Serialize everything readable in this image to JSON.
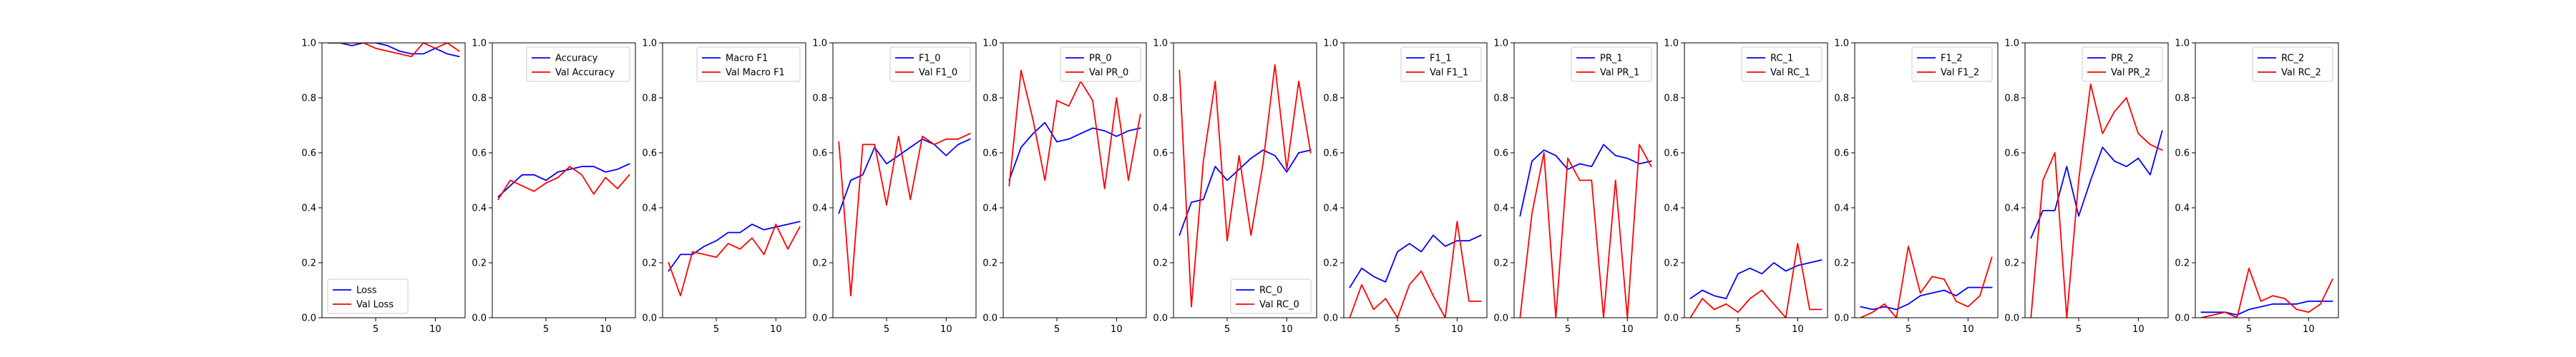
{
  "colors": {
    "train": "#0000ff",
    "val": "#ff0000"
  },
  "chart_data": [
    {
      "type": "line",
      "x": [
        1,
        2,
        3,
        4,
        5,
        6,
        7,
        8,
        9,
        10,
        11,
        12
      ],
      "ylim": [
        0,
        1
      ],
      "xticks": [
        5,
        10
      ],
      "yticks": [
        0.0,
        0.2,
        0.4,
        0.6,
        0.8,
        1.0
      ],
      "ytick_labels": [
        "0.0",
        "0.2",
        "0.4",
        "0.6",
        "0.8",
        "1.0"
      ],
      "xtick_labels": [
        "5",
        "10"
      ],
      "legend_position": "lower-left",
      "series": [
        {
          "name": "Loss",
          "values": [
            1.02,
            1.01,
            0.99,
            1.0,
            1.0,
            0.99,
            0.97,
            0.96,
            0.96,
            0.98,
            0.96,
            0.95
          ]
        },
        {
          "name": "Val Loss",
          "values": [
            1.03,
            1.02,
            1.0,
            1.01,
            0.98,
            0.97,
            0.96,
            0.95,
            1.0,
            0.98,
            1.0,
            0.97
          ]
        }
      ]
    },
    {
      "type": "line",
      "x": [
        1,
        2,
        3,
        4,
        5,
        6,
        7,
        8,
        9,
        10,
        11,
        12
      ],
      "ylim": [
        0,
        1
      ],
      "xticks": [
        5,
        10
      ],
      "yticks": [
        0.0,
        0.2,
        0.4,
        0.6,
        0.8,
        1.0
      ],
      "ytick_labels": [
        "0.0",
        "0.2",
        "0.4",
        "0.6",
        "0.8",
        "1.0"
      ],
      "xtick_labels": [
        "5",
        "10"
      ],
      "legend_position": "upper-right",
      "series": [
        {
          "name": "Accuracy",
          "values": [
            0.44,
            0.48,
            0.52,
            0.52,
            0.5,
            0.53,
            0.54,
            0.55,
            0.55,
            0.53,
            0.54,
            0.56
          ]
        },
        {
          "name": "Val Accuracy",
          "values": [
            0.43,
            0.5,
            0.48,
            0.46,
            0.49,
            0.51,
            0.55,
            0.52,
            0.45,
            0.51,
            0.47,
            0.52
          ]
        }
      ]
    },
    {
      "type": "line",
      "x": [
        1,
        2,
        3,
        4,
        5,
        6,
        7,
        8,
        9,
        10,
        11,
        12
      ],
      "ylim": [
        0,
        1
      ],
      "xticks": [
        5,
        10
      ],
      "yticks": [
        0.0,
        0.2,
        0.4,
        0.6,
        0.8,
        1.0
      ],
      "ytick_labels": [
        "0.0",
        "0.2",
        "0.4",
        "0.6",
        "0.8",
        "1.0"
      ],
      "xtick_labels": [
        "5",
        "10"
      ],
      "legend_position": "upper-right",
      "series": [
        {
          "name": "Macro F1",
          "values": [
            0.17,
            0.23,
            0.23,
            0.26,
            0.28,
            0.31,
            0.31,
            0.34,
            0.32,
            0.33,
            0.34,
            0.35
          ]
        },
        {
          "name": "Val Macro F1",
          "values": [
            0.2,
            0.08,
            0.24,
            0.23,
            0.22,
            0.27,
            0.25,
            0.29,
            0.23,
            0.34,
            0.25,
            0.33
          ]
        }
      ]
    },
    {
      "type": "line",
      "x": [
        1,
        2,
        3,
        4,
        5,
        6,
        7,
        8,
        9,
        10,
        11,
        12
      ],
      "ylim": [
        0,
        1
      ],
      "xticks": [
        5,
        10
      ],
      "yticks": [
        0.0,
        0.2,
        0.4,
        0.6,
        0.8,
        1.0
      ],
      "ytick_labels": [
        "0.0",
        "0.2",
        "0.4",
        "0.6",
        "0.8",
        "1.0"
      ],
      "xtick_labels": [
        "5",
        "10"
      ],
      "legend_position": "upper-right",
      "series": [
        {
          "name": "F1_0",
          "values": [
            0.38,
            0.5,
            0.52,
            0.62,
            0.56,
            0.59,
            0.62,
            0.65,
            0.63,
            0.59,
            0.63,
            0.65
          ]
        },
        {
          "name": "Val F1_0",
          "values": [
            0.64,
            0.08,
            0.63,
            0.63,
            0.41,
            0.66,
            0.43,
            0.66,
            0.63,
            0.65,
            0.65,
            0.67
          ]
        }
      ]
    },
    {
      "type": "line",
      "x": [
        1,
        2,
        3,
        4,
        5,
        6,
        7,
        8,
        9,
        10,
        11,
        12
      ],
      "ylim": [
        0,
        1
      ],
      "xticks": [
        5,
        10
      ],
      "yticks": [
        0.0,
        0.2,
        0.4,
        0.6,
        0.8,
        1.0
      ],
      "ytick_labels": [
        "0.0",
        "0.2",
        "0.4",
        "0.6",
        "0.8",
        "1.0"
      ],
      "xtick_labels": [
        "5",
        "10"
      ],
      "legend_position": "upper-right",
      "series": [
        {
          "name": "PR_0",
          "values": [
            0.5,
            0.62,
            0.67,
            0.71,
            0.64,
            0.65,
            0.67,
            0.69,
            0.68,
            0.66,
            0.68,
            0.69
          ]
        },
        {
          "name": "Val PR_0",
          "values": [
            0.48,
            0.9,
            0.72,
            0.5,
            0.79,
            0.77,
            0.86,
            0.79,
            0.47,
            0.8,
            0.5,
            0.74
          ]
        }
      ]
    },
    {
      "type": "line",
      "x": [
        1,
        2,
        3,
        4,
        5,
        6,
        7,
        8,
        9,
        10,
        11,
        12
      ],
      "ylim": [
        0,
        1
      ],
      "xticks": [
        5,
        10
      ],
      "yticks": [
        0.0,
        0.2,
        0.4,
        0.6,
        0.8,
        1.0
      ],
      "ytick_labels": [
        "0.0",
        "0.2",
        "0.4",
        "0.6",
        "0.8",
        "1.0"
      ],
      "xtick_labels": [
        "5",
        "10"
      ],
      "legend_position": "lower-right",
      "series": [
        {
          "name": "RC_0",
          "values": [
            0.3,
            0.42,
            0.43,
            0.55,
            0.5,
            0.54,
            0.58,
            0.61,
            0.59,
            0.53,
            0.6,
            0.61
          ]
        },
        {
          "name": "Val RC_0",
          "values": [
            0.9,
            0.04,
            0.57,
            0.86,
            0.28,
            0.59,
            0.3,
            0.56,
            0.92,
            0.54,
            0.86,
            0.6
          ]
        }
      ]
    },
    {
      "type": "line",
      "x": [
        1,
        2,
        3,
        4,
        5,
        6,
        7,
        8,
        9,
        10,
        11,
        12
      ],
      "ylim": [
        0,
        1
      ],
      "xticks": [
        5,
        10
      ],
      "yticks": [
        0.0,
        0.2,
        0.4,
        0.6,
        0.8,
        1.0
      ],
      "ytick_labels": [
        "0.0",
        "0.2",
        "0.4",
        "0.6",
        "0.8",
        "1.0"
      ],
      "xtick_labels": [
        "5",
        "10"
      ],
      "legend_position": "upper-right",
      "series": [
        {
          "name": "F1_1",
          "values": [
            0.11,
            0.18,
            0.15,
            0.13,
            0.24,
            0.27,
            0.24,
            0.3,
            0.26,
            0.28,
            0.28,
            0.3
          ]
        },
        {
          "name": "Val F1_1",
          "values": [
            0.0,
            0.12,
            0.03,
            0.07,
            0.0,
            0.12,
            0.17,
            0.08,
            0.0,
            0.35,
            0.06,
            0.06
          ]
        }
      ]
    },
    {
      "type": "line",
      "x": [
        1,
        2,
        3,
        4,
        5,
        6,
        7,
        8,
        9,
        10,
        11,
        12
      ],
      "ylim": [
        0,
        1
      ],
      "xticks": [
        5,
        10
      ],
      "yticks": [
        0.0,
        0.2,
        0.4,
        0.6,
        0.8,
        1.0
      ],
      "ytick_labels": [
        "0.0",
        "0.2",
        "0.4",
        "0.6",
        "0.8",
        "1.0"
      ],
      "xtick_labels": [
        "5",
        "10"
      ],
      "legend_position": "upper-right",
      "series": [
        {
          "name": "PR_1",
          "values": [
            0.37,
            0.57,
            0.61,
            0.59,
            0.54,
            0.56,
            0.55,
            0.63,
            0.59,
            0.58,
            0.56,
            0.57
          ]
        },
        {
          "name": "Val PR_1",
          "values": [
            0.0,
            0.38,
            0.6,
            0.0,
            0.58,
            0.5,
            0.5,
            0.0,
            0.5,
            0.0,
            0.63,
            0.55
          ]
        }
      ]
    },
    {
      "type": "line",
      "x": [
        1,
        2,
        3,
        4,
        5,
        6,
        7,
        8,
        9,
        10,
        11,
        12
      ],
      "ylim": [
        0,
        1
      ],
      "xticks": [
        5,
        10
      ],
      "yticks": [
        0.0,
        0.2,
        0.4,
        0.6,
        0.8,
        1.0
      ],
      "ytick_labels": [
        "0.0",
        "0.2",
        "0.4",
        "0.6",
        "0.8",
        "1.0"
      ],
      "xtick_labels": [
        "5",
        "10"
      ],
      "legend_position": "upper-right",
      "series": [
        {
          "name": "RC_1",
          "values": [
            0.07,
            0.1,
            0.08,
            0.07,
            0.16,
            0.18,
            0.16,
            0.2,
            0.17,
            0.19,
            0.2,
            0.21
          ]
        },
        {
          "name": "Val RC_1",
          "values": [
            0.0,
            0.07,
            0.03,
            0.05,
            0.02,
            0.07,
            0.1,
            0.05,
            0.0,
            0.27,
            0.03,
            0.03
          ]
        }
      ]
    },
    {
      "type": "line",
      "x": [
        1,
        2,
        3,
        4,
        5,
        6,
        7,
        8,
        9,
        10,
        11,
        12
      ],
      "ylim": [
        0,
        1
      ],
      "xticks": [
        5,
        10
      ],
      "yticks": [
        0.0,
        0.2,
        0.4,
        0.6,
        0.8,
        1.0
      ],
      "ytick_labels": [
        "0.0",
        "0.2",
        "0.4",
        "0.6",
        "0.8",
        "1.0"
      ],
      "xtick_labels": [
        "5",
        "10"
      ],
      "legend_position": "upper-right",
      "series": [
        {
          "name": "F1_2",
          "values": [
            0.04,
            0.03,
            0.04,
            0.03,
            0.05,
            0.08,
            0.09,
            0.1,
            0.08,
            0.11,
            0.11,
            0.11
          ]
        },
        {
          "name": "Val F1_2",
          "values": [
            0.0,
            0.02,
            0.05,
            0.0,
            0.26,
            0.09,
            0.15,
            0.14,
            0.06,
            0.04,
            0.08,
            0.22
          ]
        }
      ]
    },
    {
      "type": "line",
      "x": [
        1,
        2,
        3,
        4,
        5,
        6,
        7,
        8,
        9,
        10,
        11,
        12
      ],
      "ylim": [
        0,
        1
      ],
      "xticks": [
        5,
        10
      ],
      "yticks": [
        0.0,
        0.2,
        0.4,
        0.6,
        0.8,
        1.0
      ],
      "ytick_labels": [
        "0.0",
        "0.2",
        "0.4",
        "0.6",
        "0.8",
        "1.0"
      ],
      "xtick_labels": [
        "5",
        "10"
      ],
      "legend_position": "upper-right",
      "series": [
        {
          "name": "PR_2",
          "values": [
            0.29,
            0.39,
            0.39,
            0.55,
            0.37,
            0.5,
            0.62,
            0.57,
            0.55,
            0.58,
            0.52,
            0.68
          ]
        },
        {
          "name": "Val PR_2",
          "values": [
            0.0,
            0.5,
            0.6,
            0.0,
            0.5,
            0.85,
            0.67,
            0.75,
            0.8,
            0.67,
            0.63,
            0.61
          ]
        }
      ]
    },
    {
      "type": "line",
      "x": [
        1,
        2,
        3,
        4,
        5,
        6,
        7,
        8,
        9,
        10,
        11,
        12
      ],
      "ylim": [
        0,
        1
      ],
      "xticks": [
        5,
        10
      ],
      "yticks": [
        0.0,
        0.2,
        0.4,
        0.6,
        0.8,
        1.0
      ],
      "ytick_labels": [
        "0.0",
        "0.2",
        "0.4",
        "0.6",
        "0.8",
        "1.0"
      ],
      "xtick_labels": [
        "5",
        "10"
      ],
      "legend_position": "upper-right",
      "series": [
        {
          "name": "RC_2",
          "values": [
            0.02,
            0.02,
            0.02,
            0.01,
            0.03,
            0.04,
            0.05,
            0.05,
            0.05,
            0.06,
            0.06,
            0.06
          ]
        },
        {
          "name": "Val RC_2",
          "values": [
            0.0,
            0.01,
            0.02,
            0.0,
            0.18,
            0.06,
            0.08,
            0.07,
            0.03,
            0.02,
            0.05,
            0.14
          ]
        }
      ]
    }
  ]
}
